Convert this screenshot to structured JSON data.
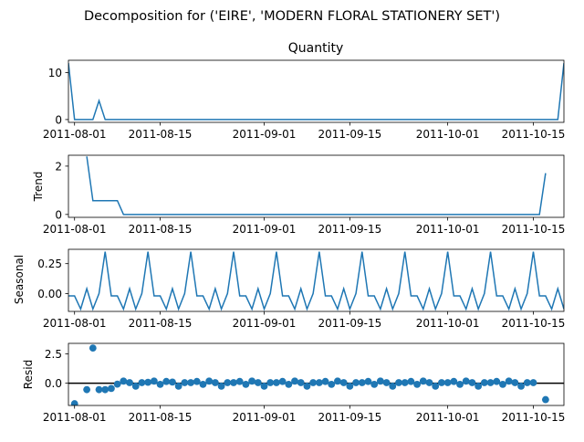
{
  "figure": {
    "suptitle": "Decomposition for ('EIRE', 'MODERN FLORAL STATIONERY SET')"
  },
  "x_axis": {
    "start": "2011-07-31",
    "end": "2011-10-20",
    "ticks": [
      "2011-08-01",
      "2011-08-15",
      "2011-09-01",
      "2011-09-15",
      "2011-10-01",
      "2011-10-15"
    ]
  },
  "colors": {
    "line": "#1f77b4",
    "zero_line": "#000000"
  },
  "chart_data": [
    {
      "type": "line",
      "title": "Quantity",
      "ylabel": "",
      "ylim": [
        -0.6,
        12.6
      ],
      "yticks": [
        0,
        10
      ],
      "points": [
        [
          "2011-07-31",
          12
        ],
        [
          "2011-08-01",
          0
        ],
        [
          "2011-08-02",
          0
        ],
        [
          "2011-08-03",
          0
        ],
        [
          "2011-08-04",
          0
        ],
        [
          "2011-08-05",
          4
        ],
        [
          "2011-08-06",
          0
        ],
        [
          "2011-10-17",
          0
        ],
        [
          "2011-10-18",
          0
        ],
        [
          "2011-10-19",
          0
        ],
        [
          "2011-10-20",
          12
        ]
      ]
    },
    {
      "type": "line",
      "title": "",
      "ylabel": "Trend",
      "ylim": [
        -0.12,
        2.45
      ],
      "yticks": [
        0,
        2
      ],
      "points": [
        [
          "2011-08-03",
          2.4
        ],
        [
          "2011-08-04",
          0.57
        ],
        [
          "2011-08-05",
          0.57
        ],
        [
          "2011-08-06",
          0.57
        ],
        [
          "2011-08-07",
          0.57
        ],
        [
          "2011-08-08",
          0.57
        ],
        [
          "2011-08-09",
          0
        ],
        [
          "2011-10-16",
          0
        ],
        [
          "2011-10-17",
          1.71
        ]
      ]
    },
    {
      "type": "line",
      "title": "",
      "ylabel": "Seasonal",
      "ylim": [
        -0.15,
        0.37
      ],
      "yticks": [
        0,
        0.25
      ],
      "ytick_labels": [
        "0.00",
        "0.25"
      ],
      "pattern": [
        -0.02,
        -0.02,
        -0.13,
        0.04,
        -0.13,
        0.0,
        0.35
      ],
      "pattern_start": "2011-07-31",
      "pattern_end": "2011-10-20"
    },
    {
      "type": "scatter",
      "title": "",
      "ylabel": "Resid",
      "ylim": [
        -1.9,
        3.4
      ],
      "yticks": [
        0,
        2.5
      ],
      "ytick_labels": [
        "0.0",
        "2.5"
      ],
      "zero_line": true,
      "points": [
        [
          "2011-08-01",
          -1.75
        ],
        [
          "2011-08-03",
          -0.55
        ],
        [
          "2011-08-04",
          3.0
        ],
        [
          "2011-08-05",
          -0.55
        ],
        [
          "2011-08-06",
          -0.55
        ],
        [
          "2011-08-07",
          -0.45
        ],
        [
          "2011-08-08",
          -0.08
        ],
        [
          "2011-08-09",
          0.18
        ],
        [
          "2011-08-10",
          0.05
        ],
        [
          "2011-08-11",
          -0.25
        ],
        [
          "2011-08-12",
          0.05
        ],
        [
          "2011-08-13",
          0.08
        ],
        [
          "2011-08-14",
          0.18
        ],
        [
          "2011-08-15",
          -0.1
        ],
        [
          "2011-08-16",
          0.15
        ],
        [
          "2011-08-17",
          0.1
        ],
        [
          "2011-08-18",
          -0.25
        ],
        [
          "2011-08-19",
          0.05
        ],
        [
          "2011-08-20",
          0.05
        ],
        [
          "2011-08-21",
          0.15
        ],
        [
          "2011-08-22",
          -0.1
        ],
        [
          "2011-08-23",
          0.18
        ],
        [
          "2011-08-24",
          0.05
        ],
        [
          "2011-08-25",
          -0.25
        ],
        [
          "2011-08-26",
          0.05
        ],
        [
          "2011-08-27",
          0.05
        ],
        [
          "2011-08-28",
          0.15
        ],
        [
          "2011-08-29",
          -0.1
        ],
        [
          "2011-08-30",
          0.18
        ],
        [
          "2011-08-31",
          0.05
        ],
        [
          "2011-09-01",
          -0.25
        ],
        [
          "2011-09-02",
          0.05
        ],
        [
          "2011-09-03",
          0.05
        ],
        [
          "2011-09-04",
          0.15
        ],
        [
          "2011-09-05",
          -0.1
        ],
        [
          "2011-09-06",
          0.18
        ],
        [
          "2011-09-07",
          0.05
        ],
        [
          "2011-09-08",
          -0.25
        ],
        [
          "2011-09-09",
          0.05
        ],
        [
          "2011-09-10",
          0.05
        ],
        [
          "2011-09-11",
          0.15
        ],
        [
          "2011-09-12",
          -0.1
        ],
        [
          "2011-09-13",
          0.18
        ],
        [
          "2011-09-14",
          0.05
        ],
        [
          "2011-09-15",
          -0.25
        ],
        [
          "2011-09-16",
          0.05
        ],
        [
          "2011-09-17",
          0.05
        ],
        [
          "2011-09-18",
          0.15
        ],
        [
          "2011-09-19",
          -0.1
        ],
        [
          "2011-09-20",
          0.18
        ],
        [
          "2011-09-21",
          0.05
        ],
        [
          "2011-09-22",
          -0.25
        ],
        [
          "2011-09-23",
          0.05
        ],
        [
          "2011-09-24",
          0.05
        ],
        [
          "2011-09-25",
          0.15
        ],
        [
          "2011-09-26",
          -0.1
        ],
        [
          "2011-09-27",
          0.18
        ],
        [
          "2011-09-28",
          0.05
        ],
        [
          "2011-09-29",
          -0.25
        ],
        [
          "2011-09-30",
          0.05
        ],
        [
          "2011-10-01",
          0.05
        ],
        [
          "2011-10-02",
          0.15
        ],
        [
          "2011-10-03",
          -0.1
        ],
        [
          "2011-10-04",
          0.18
        ],
        [
          "2011-10-05",
          0.05
        ],
        [
          "2011-10-06",
          -0.25
        ],
        [
          "2011-10-07",
          0.05
        ],
        [
          "2011-10-08",
          0.05
        ],
        [
          "2011-10-09",
          0.15
        ],
        [
          "2011-10-10",
          -0.1
        ],
        [
          "2011-10-11",
          0.18
        ],
        [
          "2011-10-12",
          0.05
        ],
        [
          "2011-10-13",
          -0.25
        ],
        [
          "2011-10-14",
          0.05
        ],
        [
          "2011-10-15",
          0.05
        ],
        [
          "2011-10-17",
          -1.4
        ]
      ]
    }
  ]
}
